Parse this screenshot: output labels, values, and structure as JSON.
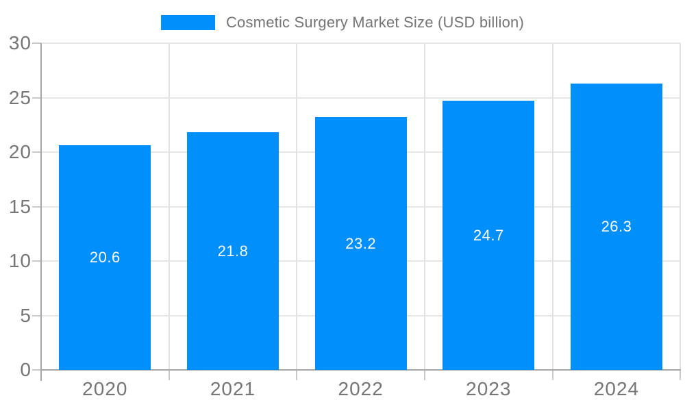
{
  "legend": {
    "series_label": "Cosmetic Surgery Market Size (USD billion)"
  },
  "colors": {
    "bar": "#008FFB",
    "grid": "#e6e6e6",
    "axis": "#a6a6a6",
    "tick": "#c9c9c9",
    "tick_text": "#757575",
    "bar_label_text": "#ffffff",
    "background": "#ffffff"
  },
  "chart_data": {
    "type": "bar",
    "title": "Cosmetic Surgery Market Size (USD billion)",
    "categories": [
      "2020",
      "2021",
      "2022",
      "2023",
      "2024"
    ],
    "values": [
      20.6,
      21.8,
      23.2,
      24.7,
      26.3
    ],
    "series": [
      {
        "name": "Cosmetic Surgery Market Size (USD billion)",
        "values": [
          20.6,
          21.8,
          23.2,
          24.7,
          26.3
        ]
      }
    ],
    "xlabel": "",
    "ylabel": "",
    "ylim": [
      0,
      30
    ],
    "yticks": [
      0,
      5,
      10,
      15,
      20,
      25,
      30
    ],
    "grid": true,
    "legend_position": "top",
    "bar_value_labels": "inside-center"
  }
}
